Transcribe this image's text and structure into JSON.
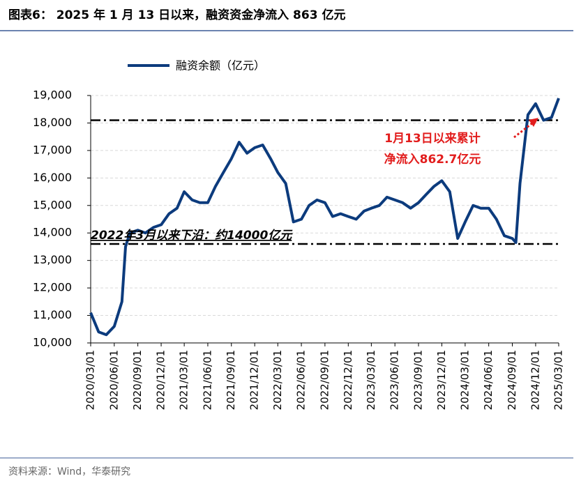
{
  "chart_data": {
    "type": "line",
    "title": "图表6：  2025 年 1 月 13 日以来，融资资金净流入 863 亿元",
    "source": "资料来源：Wind，华泰研究",
    "annotations": [
      "2022年3月以来下沿：约14000亿元",
      "1月13日以来累计",
      "净流入862.7亿元"
    ],
    "reference_lines": [
      18100,
      13600
    ],
    "grid": true,
    "legend": "top-left",
    "xlim": [
      "2020/03/01",
      "2025/03/01"
    ],
    "xticks": [
      "2020/03/01",
      "2020/06/01",
      "2020/09/01",
      "2020/12/01",
      "2021/03/01",
      "2021/06/01",
      "2021/09/01",
      "2021/12/01",
      "2022/03/01",
      "2022/06/01",
      "2022/09/01",
      "2022/12/01",
      "2023/03/01",
      "2023/06/01",
      "2023/09/01",
      "2023/12/01",
      "2024/03/01",
      "2024/06/01",
      "2024/09/01",
      "2024/12/01",
      "2025/03/01"
    ],
    "ylim": [
      10000,
      19000
    ],
    "yticks": [
      {
        "value": 10000,
        "label": "10,000"
      },
      {
        "value": 11000,
        "label": "11,000"
      },
      {
        "value": 12000,
        "label": "12,000"
      },
      {
        "value": 13000,
        "label": "13,000"
      },
      {
        "value": 14000,
        "label": "14,000"
      },
      {
        "value": 15000,
        "label": "15,000"
      },
      {
        "value": 16000,
        "label": "16,000"
      },
      {
        "value": 17000,
        "label": "17,000"
      },
      {
        "value": 18000,
        "label": "18,000"
      },
      {
        "value": 19000,
        "label": "19,000"
      }
    ],
    "x": [
      "2020/03/01",
      "2020/04/01",
      "2020/05/01",
      "2020/06/01",
      "2020/07/01",
      "2020/07/15",
      "2020/08/01",
      "2020/09/01",
      "2020/10/01",
      "2020/11/01",
      "2020/12/01",
      "2021/01/01",
      "2021/02/01",
      "2021/03/01",
      "2021/04/01",
      "2021/05/01",
      "2021/06/01",
      "2021/07/01",
      "2021/08/01",
      "2021/09/01",
      "2021/10/01",
      "2021/11/01",
      "2021/12/01",
      "2022/01/01",
      "2022/02/01",
      "2022/03/01",
      "2022/04/01",
      "2022/05/01",
      "2022/06/01",
      "2022/07/01",
      "2022/08/01",
      "2022/09/01",
      "2022/10/01",
      "2022/11/01",
      "2022/12/01",
      "2023/01/01",
      "2023/02/01",
      "2023/03/01",
      "2023/04/01",
      "2023/05/01",
      "2023/06/01",
      "2023/07/01",
      "2023/08/01",
      "2023/09/01",
      "2023/10/01",
      "2023/11/01",
      "2023/12/01",
      "2024/01/01",
      "2024/02/01",
      "2024/03/01",
      "2024/04/01",
      "2024/05/01",
      "2024/06/01",
      "2024/07/01",
      "2024/08/01",
      "2024/09/01",
      "2024/09/15",
      "2024/10/01",
      "2024/11/01",
      "2024/12/01",
      "2025/01/01",
      "2025/02/01",
      "2025/03/01"
    ],
    "series": [
      {
        "name": "融资余额（亿元）",
        "color": "#0c3b7d",
        "values": [
          11100,
          10400,
          10300,
          10600,
          11500,
          13500,
          14000,
          14100,
          14000,
          14200,
          14300,
          14700,
          14900,
          15500,
          15200,
          15100,
          15100,
          15700,
          16200,
          16700,
          17300,
          16900,
          17100,
          17200,
          16700,
          16200,
          15800,
          14400,
          14500,
          15000,
          15200,
          15100,
          14600,
          14700,
          14600,
          14500,
          14800,
          14900,
          15000,
          15300,
          15200,
          15100,
          14900,
          15100,
          15400,
          15700,
          15900,
          15500,
          13800,
          14400,
          15000,
          14900,
          14900,
          14500,
          13900,
          13800,
          13650,
          15800,
          18300,
          18700,
          18100,
          18200,
          18900
        ]
      }
    ]
  }
}
